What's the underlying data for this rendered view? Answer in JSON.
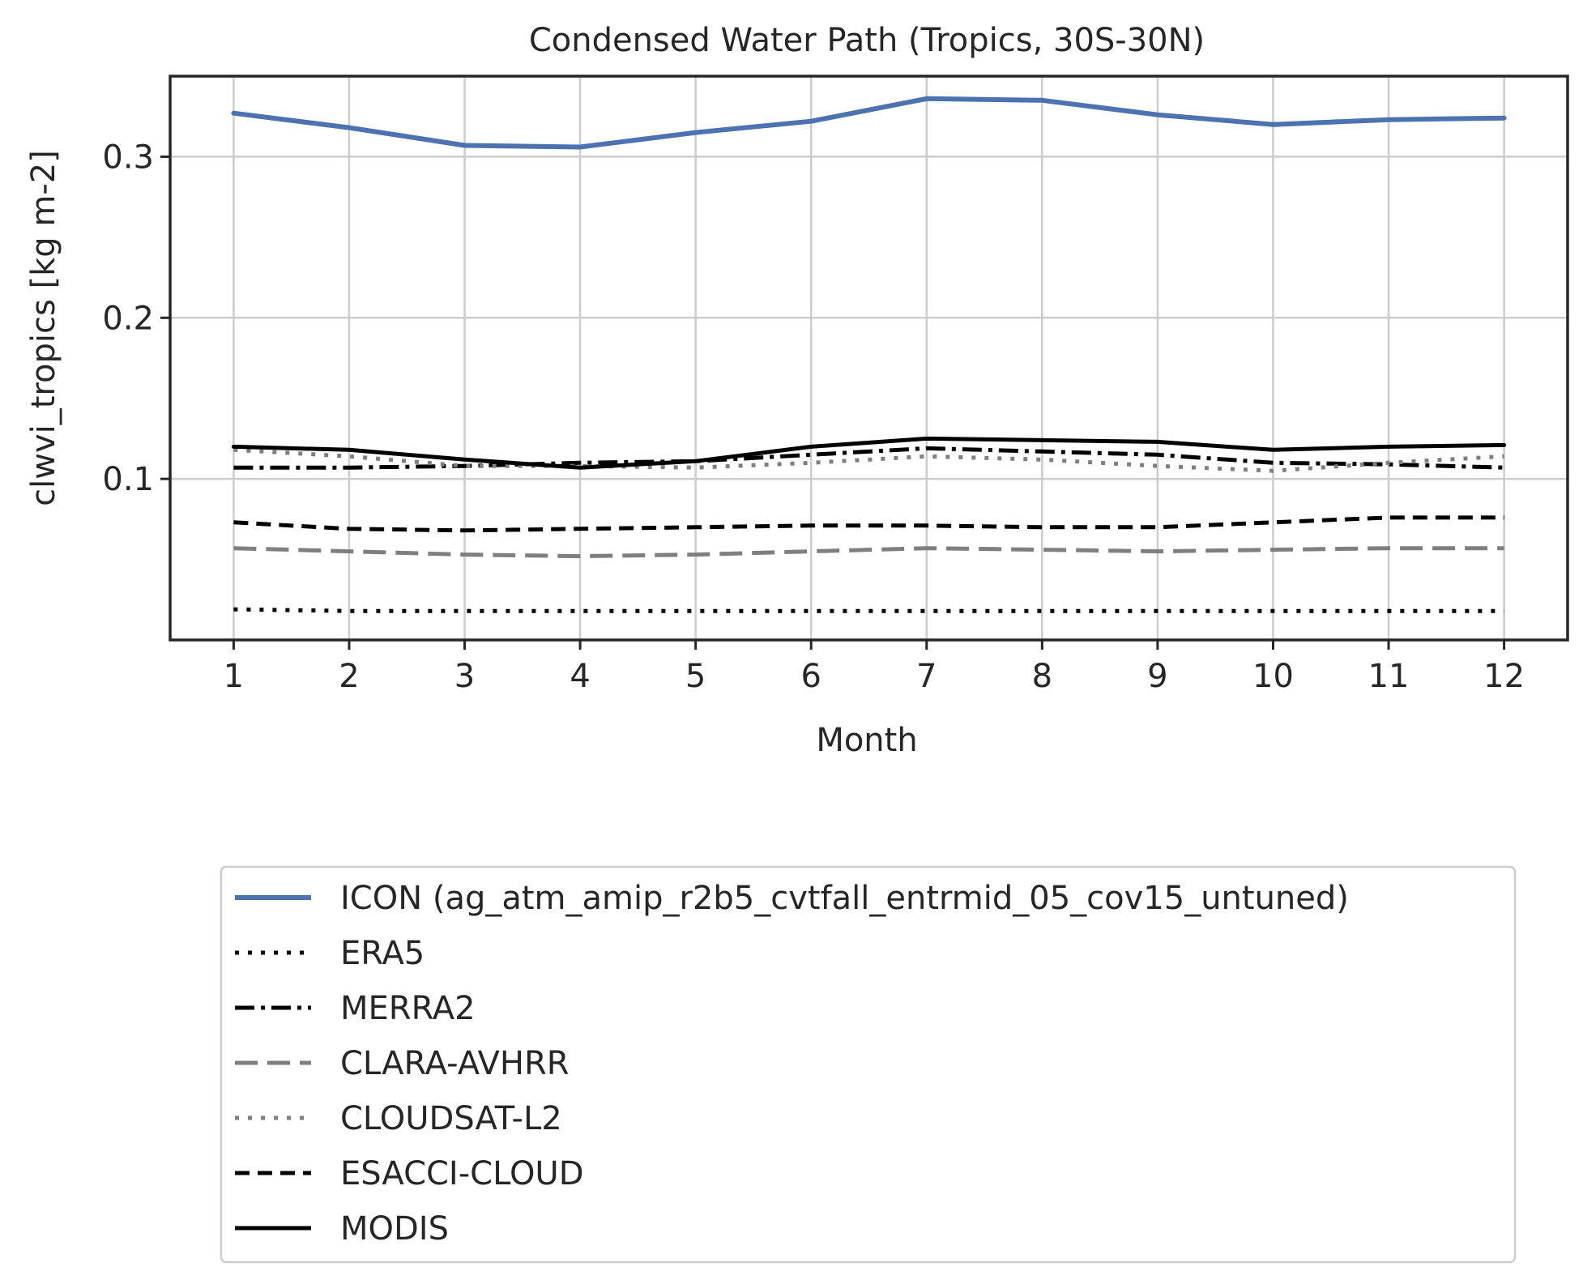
{
  "chart_data": {
    "type": "line",
    "title": "Condensed Water Path (Tropics, 30S-30N)",
    "xlabel": "Month",
    "ylabel": "clwvi_tropics [kg m-2]",
    "x": [
      1,
      2,
      3,
      4,
      5,
      6,
      7,
      8,
      9,
      10,
      11,
      12
    ],
    "xlim": [
      0.45,
      12.55
    ],
    "ylim": [
      0.0,
      0.35
    ],
    "yticks": [
      0.1,
      0.2,
      0.3
    ],
    "ytick_labels": [
      "0.1",
      "0.2",
      "0.3"
    ],
    "xtick_labels": [
      "1",
      "2",
      "3",
      "4",
      "5",
      "6",
      "7",
      "8",
      "9",
      "10",
      "11",
      "12"
    ],
    "grid": true,
    "legend_position": "below",
    "series": [
      {
        "name": "ICON (ag_atm_amip_r2b5_cvtfall_entrmid_05_cov15_untuned)",
        "values": [
          0.327,
          0.318,
          0.307,
          0.306,
          0.315,
          0.322,
          0.336,
          0.335,
          0.326,
          0.32,
          0.323,
          0.324
        ],
        "color": "#4c72b0",
        "dash": "solid",
        "width": 6
      },
      {
        "name": "ERA5",
        "values": [
          0.019,
          0.018,
          0.018,
          0.018,
          0.018,
          0.018,
          0.018,
          0.018,
          0.018,
          0.018,
          0.018,
          0.018
        ],
        "color": "#000000",
        "dash": "dotted",
        "width": 5
      },
      {
        "name": "MERRA2",
        "values": [
          0.107,
          0.107,
          0.108,
          0.11,
          0.111,
          0.115,
          0.119,
          0.117,
          0.115,
          0.11,
          0.109,
          0.107
        ],
        "color": "#000000",
        "dash": "dashdot",
        "width": 5
      },
      {
        "name": "CLARA-AVHRR",
        "values": [
          0.057,
          0.055,
          0.053,
          0.052,
          0.053,
          0.055,
          0.057,
          0.056,
          0.055,
          0.056,
          0.057,
          0.057
        ],
        "color": "#7f7f7f",
        "dash": "dashed-long",
        "width": 5
      },
      {
        "name": "CLOUDSAT-L2",
        "values": [
          0.118,
          0.114,
          0.108,
          0.108,
          0.107,
          0.11,
          0.114,
          0.112,
          0.108,
          0.105,
          0.11,
          0.114
        ],
        "color": "#7f7f7f",
        "dash": "dotted",
        "width": 5
      },
      {
        "name": "ESACCI-CLOUD",
        "values": [
          0.073,
          0.069,
          0.068,
          0.069,
          0.07,
          0.071,
          0.071,
          0.07,
          0.07,
          0.073,
          0.076,
          0.076
        ],
        "color": "#000000",
        "dash": "dashed",
        "width": 5
      },
      {
        "name": "MODIS",
        "values": [
          0.12,
          0.118,
          0.112,
          0.107,
          0.111,
          0.12,
          0.125,
          0.124,
          0.123,
          0.118,
          0.12,
          0.121
        ],
        "color": "#000000",
        "dash": "solid",
        "width": 5
      }
    ]
  }
}
